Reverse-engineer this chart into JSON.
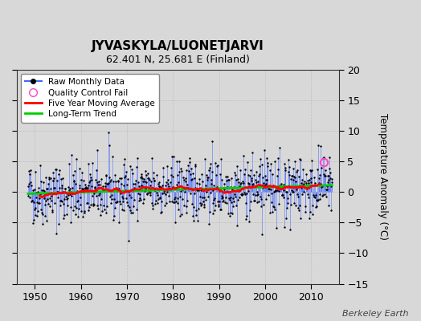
{
  "title": "JYVASKYLA/LUONETJARVI",
  "subtitle": "62.401 N, 25.681 E (Finland)",
  "ylabel": "Temperature Anomaly (°C)",
  "watermark": "Berkeley Earth",
  "ylim": [
    -15,
    20
  ],
  "yticks": [
    -15,
    -10,
    -5,
    0,
    5,
    10,
    15,
    20
  ],
  "start_year": 1948.5,
  "end_year": 2014.5,
  "xlim_start": 1946,
  "xlim_end": 2016,
  "bg_color": "#d8d8d8",
  "plot_bg_color": "#d8d8d8",
  "raw_line_color": "#4466ff",
  "raw_dot_color": "#000000",
  "moving_avg_color": "#ff0000",
  "trend_color": "#00cc00",
  "qc_fail_color": "#ff44cc",
  "legend_items": [
    "Raw Monthly Data",
    "Quality Control Fail",
    "Five Year Moving Average",
    "Long-Term Trend"
  ],
  "seed": 42,
  "noise_std": 2.5,
  "trend_slope": 0.022,
  "trend_intercept": -0.35
}
